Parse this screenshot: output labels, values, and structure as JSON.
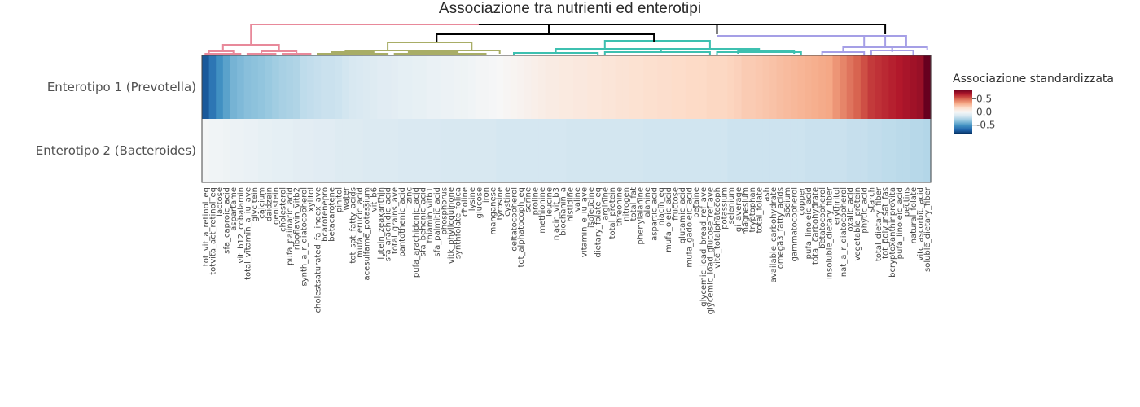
{
  "chart_data": {
    "type": "heatmap",
    "title": "Associazione tra nutrienti ed enterotipi",
    "rows": [
      "Enterotipo 1 (Prevotella)",
      "Enterotipo 2 (Bacteroides)"
    ],
    "columns": [
      "tot_vit_a_retinol_eq",
      "totvita_act_retinol_eq",
      "lactose",
      "sfa_caproic_acid",
      "aspartame",
      "vit_b12_cobalamin",
      "total_vitamin_a_iu_ave",
      "glycitein",
      "calcium",
      "daidzein",
      "genistein",
      "cholesterol",
      "pufa_paiinaric_acid",
      "riboflavin_vitb2",
      "synth_a_r_diatocopherol",
      "xylitol",
      "cholestsaturated_fa_index_ave",
      "bcarotenepro",
      "betacarotene",
      "pinitol",
      "water",
      "tot_sat_fatty_acids",
      "mufa_erucic_acid",
      "acesulfame_potassium",
      "vit_b6",
      "lutein_zeaxanthin",
      "sfa_arachidic_acid",
      "total_grains_ave",
      "pantothenic_acid",
      "zinc",
      "pufa_arachidonic_acid",
      "sfa_behenic_acid",
      "thiamin_vitb1",
      "sfa_palmitic_acid",
      "phosphorus",
      "vitk_phylloquinone",
      "synthfolate_folica",
      "choline",
      "lysine",
      "glucose",
      "iron",
      "manganese",
      "tyrosine",
      "cystine",
      "deltatocopherol",
      "tot_alphatocoph_eq",
      "serine",
      "proline",
      "methionine",
      "leucine",
      "niacin_vit_b3",
      "biochanin_a",
      "histidine",
      "valine",
      "vitamin_e_iu_ave",
      "isoleucine",
      "dietary_folate_eq",
      "arginine",
      "total_protein",
      "threonine",
      "nitrogen",
      "total_fat",
      "phenylalanine",
      "alanine",
      "aspartic_acid",
      "niacin_eq",
      "mufa_oleic_acid",
      "fructose",
      "glutamic_acid",
      "mufa_gadoleic_acid",
      "betaine",
      "glycemic_load_bread_ref_ave",
      "glycemic_load_glucose_ref_ave",
      "vite_totalphatocoph",
      "potassium",
      "selenium",
      "gi_average",
      "magnesium",
      "tryptophan",
      "total_folate",
      "ash",
      "available_carbohydrate",
      "omega3_fatty_acids",
      "sodium",
      "gammatocopherol",
      "copper",
      "pufa_linoleic_acid",
      "total_carbohydrate",
      "betatocopherol",
      "insoluble_dietary_fiber",
      "erythritol",
      "nat_a_r_diatocopherol",
      "oxalic_acid",
      "vegetable_protein",
      "phytic_acid",
      "starch",
      "total_dietary_fiber",
      "tot_polyunsat_fas",
      "bcryptoxanthinprovita",
      "pufa_linoleic_acid",
      "pectins",
      "natural_folate",
      "vitc_ascorbic_acid",
      "soluble_dietary_fiber"
    ],
    "values": [
      [
        -0.72,
        -0.62,
        -0.52,
        -0.46,
        -0.4,
        -0.38,
        -0.36,
        -0.35,
        -0.34,
        -0.32,
        -0.3,
        -0.28,
        -0.27,
        -0.26,
        -0.22,
        -0.21,
        -0.2,
        -0.19,
        -0.19,
        -0.18,
        -0.16,
        -0.14,
        -0.13,
        -0.12,
        -0.11,
        -0.1,
        -0.1,
        -0.09,
        -0.08,
        -0.08,
        -0.07,
        -0.07,
        -0.06,
        -0.06,
        -0.05,
        -0.05,
        -0.04,
        -0.04,
        -0.03,
        -0.02,
        -0.02,
        -0.01,
        0.0,
        0.01,
        0.02,
        0.03,
        0.04,
        0.05,
        0.06,
        0.07,
        0.07,
        0.08,
        0.08,
        0.09,
        0.09,
        0.1,
        0.1,
        0.11,
        0.11,
        0.12,
        0.12,
        0.13,
        0.13,
        0.14,
        0.14,
        0.15,
        0.15,
        0.16,
        0.16,
        0.17,
        0.17,
        0.17,
        0.18,
        0.18,
        0.18,
        0.19,
        0.2,
        0.22,
        0.22,
        0.23,
        0.24,
        0.25,
        0.26,
        0.27,
        0.28,
        0.29,
        0.3,
        0.31,
        0.32,
        0.33,
        0.38,
        0.42,
        0.46,
        0.5,
        0.55,
        0.6,
        0.62,
        0.64,
        0.66,
        0.68,
        0.7,
        0.72,
        0.74,
        0.85
      ],
      [
        -0.02,
        -0.03,
        -0.03,
        -0.04,
        -0.05,
        -0.05,
        -0.06,
        -0.06,
        -0.07,
        -0.07,
        -0.08,
        -0.08,
        -0.08,
        -0.09,
        -0.09,
        -0.09,
        -0.1,
        -0.1,
        -0.1,
        -0.11,
        -0.11,
        -0.11,
        -0.11,
        -0.12,
        -0.12,
        -0.12,
        -0.12,
        -0.12,
        -0.13,
        -0.13,
        -0.13,
        -0.13,
        -0.13,
        -0.13,
        -0.14,
        -0.14,
        -0.14,
        -0.14,
        -0.14,
        -0.14,
        -0.14,
        -0.14,
        -0.15,
        -0.15,
        -0.15,
        -0.15,
        -0.15,
        -0.15,
        -0.15,
        -0.15,
        -0.15,
        -0.15,
        -0.16,
        -0.16,
        -0.16,
        -0.16,
        -0.16,
        -0.16,
        -0.16,
        -0.16,
        -0.16,
        -0.16,
        -0.16,
        -0.17,
        -0.17,
        -0.17,
        -0.17,
        -0.17,
        -0.17,
        -0.17,
        -0.17,
        -0.17,
        -0.17,
        -0.17,
        -0.17,
        -0.18,
        -0.18,
        -0.18,
        -0.18,
        -0.18,
        -0.18,
        -0.18,
        -0.18,
        -0.18,
        -0.18,
        -0.18,
        -0.19,
        -0.19,
        -0.19,
        -0.19,
        -0.19,
        -0.19,
        -0.2,
        -0.2,
        -0.2,
        -0.21,
        -0.21,
        -0.22,
        -0.22,
        -0.23,
        -0.23,
        -0.24,
        -0.24,
        -0.25
      ]
    ],
    "colorscale": [
      "#053061",
      "#2166ac",
      "#4393c3",
      "#92c5de",
      "#d1e5f0",
      "#f7f7f7",
      "#fddbc7",
      "#f4a582",
      "#d6604d",
      "#b2182b",
      "#67001f"
    ],
    "zrange": [
      -0.85,
      0.85
    ],
    "colorbar": {
      "title": "Associazione standardizzata",
      "ticks": [
        0.5,
        0.0,
        -0.5
      ],
      "tick_labels": [
        "0.5",
        "0.0",
        "-0.5"
      ]
    },
    "dendrogram_colors": [
      "#e8899a",
      "#a8ad66",
      "#3dc0b0",
      "#a59fe6",
      "#000000"
    ]
  }
}
